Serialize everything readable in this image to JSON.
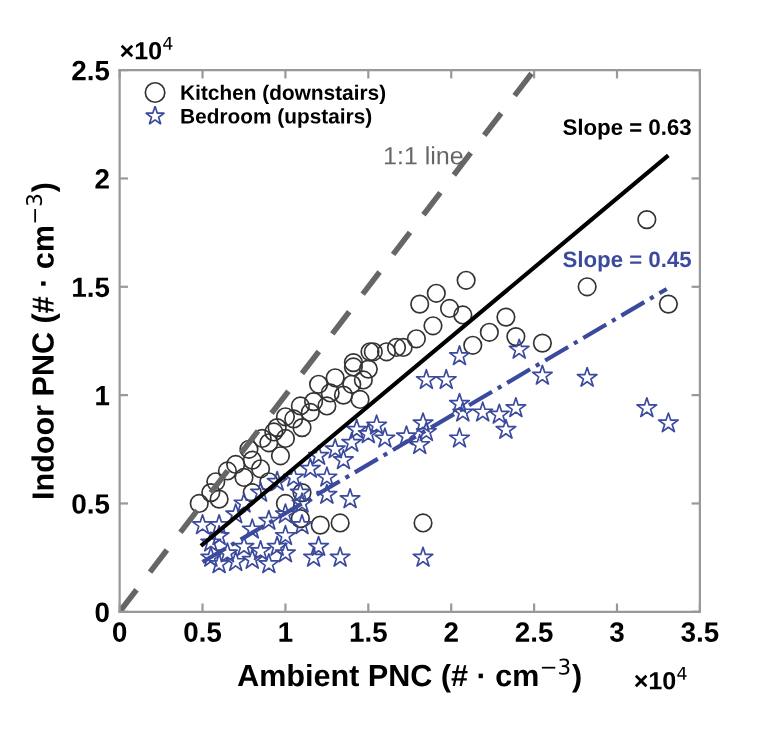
{
  "chart_data": {
    "type": "scatter",
    "xlabel": "Ambient PNC (# · cm$^{−3}$)",
    "ylabel": "Indoor PNC (# · cm$^{−3}$)",
    "xlim": [
      0,
      3.5
    ],
    "ylim": [
      0,
      2.5
    ],
    "xticks": [
      0,
      0.5,
      1,
      1.5,
      2,
      2.5,
      3,
      3.5
    ],
    "yticks": [
      0,
      0.5,
      1,
      1.5,
      2,
      2.5
    ],
    "grid": false,
    "legend": "top left",
    "annotations": [
      "×10$^{4}$",
      "×10$^{4}$"
    ],
    "series": [
      {
        "name": "Kitchen (downstairs)",
        "marker": "circle",
        "color": "#333333",
        "x": [
          0.48,
          0.58,
          0.6,
          0.78,
          0.86,
          0.93,
          0.97,
          1.05,
          1.09,
          1.17,
          1.27,
          1.35,
          1.41,
          1.47,
          1.53,
          1.67,
          1.33,
          1.21,
          1.09,
          1.83,
          3.18,
          2.82,
          3.31,
          2.09,
          1.91,
          1.81,
          1.99,
          2.07,
          2.23,
          2.33,
          2.39,
          2.55,
          2.13,
          1.41,
          1.51,
          1.61,
          1.71,
          1.79,
          1.89,
          0.65,
          0.7,
          0.75,
          0.8,
          0.85,
          0.9,
          0.95,
          1.0,
          1.0,
          1.1,
          1.15,
          1.2,
          1.25,
          1.3,
          1.4,
          1.45,
          0.55,
          1.5,
          0.8,
          0.9,
          1.0,
          1.1
        ],
        "values": [
          0.5,
          0.6,
          0.52,
          0.75,
          0.8,
          0.83,
          0.72,
          0.89,
          0.95,
          0.97,
          1.01,
          1.0,
          1.13,
          1.07,
          1.2,
          1.22,
          0.41,
          0.4,
          0.43,
          0.41,
          1.81,
          1.5,
          1.42,
          1.53,
          1.47,
          1.42,
          1.4,
          1.37,
          1.29,
          1.36,
          1.27,
          1.24,
          1.23,
          1.15,
          1.2,
          1.2,
          1.22,
          1.26,
          1.32,
          0.65,
          0.68,
          0.62,
          0.7,
          0.66,
          0.78,
          0.85,
          0.8,
          0.9,
          0.85,
          0.92,
          1.05,
          0.95,
          1.08,
          1.05,
          0.98,
          0.55,
          1.12,
          0.55,
          0.6,
          0.5,
          0.55
        ]
      },
      {
        "name": "Bedroom (upstairs)",
        "marker": "star",
        "color": "#3b4a9c",
        "x": [
          2.82,
          3.18,
          3.31,
          2.55,
          2.39,
          2.33,
          2.05,
          2.05,
          2.19,
          1.97,
          1.85,
          1.83,
          1.81,
          1.85,
          1.83,
          1.33,
          1.17,
          2.05,
          2.41,
          2.07,
          2.29,
          1.55,
          1.43,
          1.39,
          1.25,
          1.09,
          1.73,
          0.55,
          0.6,
          0.65,
          0.7,
          0.75,
          0.8,
          0.85,
          0.9,
          0.95,
          1.0,
          0.6,
          0.7,
          0.8,
          0.9,
          1.0,
          1.1,
          0.6,
          0.75,
          0.85,
          0.95,
          1.05,
          1.15,
          1.2,
          1.3,
          1.35,
          1.25,
          1.4,
          1.5,
          1.6,
          1.0,
          1.1,
          0.5,
          0.55,
          1.2
        ],
        "values": [
          1.08,
          0.94,
          0.87,
          1.09,
          0.94,
          0.84,
          0.8,
          0.96,
          0.92,
          1.07,
          1.07,
          0.87,
          0.77,
          0.83,
          0.25,
          0.25,
          0.25,
          1.18,
          1.21,
          0.92,
          0.91,
          0.86,
          0.84,
          0.52,
          0.54,
          0.55,
          0.81,
          0.25,
          0.22,
          0.27,
          0.23,
          0.3,
          0.24,
          0.28,
          0.22,
          0.3,
          0.27,
          0.4,
          0.45,
          0.38,
          0.42,
          0.45,
          0.5,
          0.35,
          0.5,
          0.55,
          0.6,
          0.62,
          0.66,
          0.72,
          0.75,
          0.7,
          0.62,
          0.78,
          0.82,
          0.8,
          0.35,
          0.4,
          0.4,
          0.32,
          0.3
        ]
      },
      {
        "name": "1:1 line",
        "type": "line",
        "line_style": "dashed",
        "color": "#666666",
        "x": [
          0,
          2.5
        ],
        "values": [
          0,
          2.5
        ]
      },
      {
        "name": "Slope = 0.63",
        "type": "line",
        "line_style": "solid",
        "color": "#000000",
        "x": [
          0.5,
          3.3
        ],
        "values": [
          0.31,
          2.1
        ]
      },
      {
        "name": "Slope = 0.45",
        "type": "line",
        "line_style": "dashdot",
        "color": "#3b4a9c",
        "x": [
          0.5,
          3.3
        ],
        "values": [
          0.23,
          1.49
        ]
      }
    ]
  }
}
